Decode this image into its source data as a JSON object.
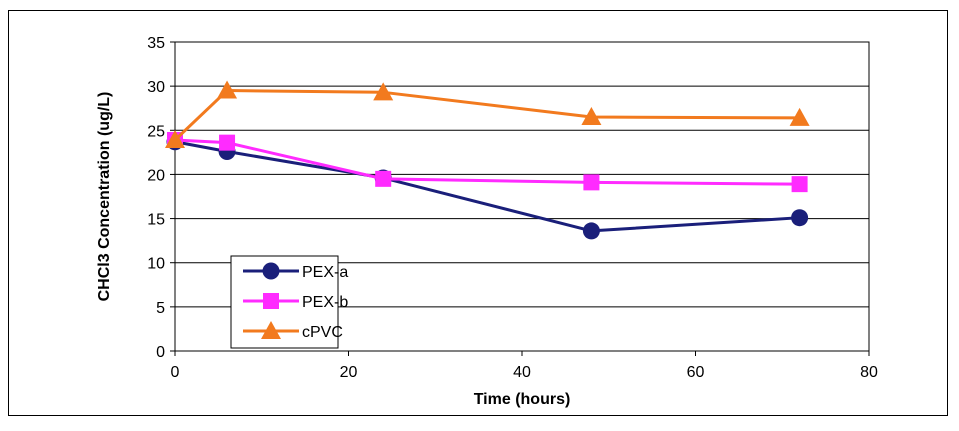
{
  "chart_data": {
    "type": "line",
    "xlabel": "Time (hours)",
    "ylabel": "CHCl3 Concentration (ug/L)",
    "xlim": [
      0,
      80
    ],
    "ylim": [
      0,
      35
    ],
    "xticks": [
      0,
      20,
      40,
      60,
      80
    ],
    "yticks": [
      0,
      5,
      10,
      15,
      20,
      25,
      30,
      35
    ],
    "grid": "horizontal",
    "legend_position": "bottom-left",
    "series": [
      {
        "name": "PEX-a",
        "color": "#1a1f7a",
        "marker": "circle",
        "x": [
          0,
          6,
          24,
          48,
          72
        ],
        "y": [
          23.7,
          22.6,
          19.6,
          13.6,
          15.1
        ]
      },
      {
        "name": "PEX-b",
        "color": "#ff2bff",
        "marker": "square",
        "x": [
          0,
          6,
          24,
          48,
          72
        ],
        "y": [
          23.9,
          23.6,
          19.5,
          19.1,
          18.9
        ]
      },
      {
        "name": "cPVC",
        "color": "#f27a1e",
        "marker": "triangle",
        "x": [
          0,
          6,
          24,
          48,
          72
        ],
        "y": [
          23.9,
          29.5,
          29.3,
          26.5,
          26.4
        ]
      }
    ]
  }
}
